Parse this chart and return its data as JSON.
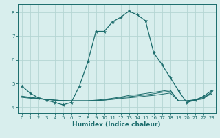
{
  "xlabel": "Humidex (Indice chaleur)",
  "background_color": "#d8eeed",
  "grid_color": "#b5d5d3",
  "line_color": "#1a6b6b",
  "xlim": [
    -0.5,
    23.5
  ],
  "ylim": [
    3.75,
    8.35
  ],
  "yticks": [
    4,
    5,
    6,
    7,
    8
  ],
  "xticks": [
    0,
    1,
    2,
    3,
    4,
    5,
    6,
    7,
    8,
    9,
    10,
    11,
    12,
    13,
    14,
    15,
    16,
    17,
    18,
    19,
    20,
    21,
    22,
    23
  ],
  "main_x": [
    0,
    1,
    2,
    3,
    4,
    5,
    6,
    7,
    8,
    9,
    10,
    11,
    12,
    13,
    14,
    15,
    16,
    17,
    18,
    19,
    20,
    21,
    22,
    23
  ],
  "main_y": [
    4.9,
    4.6,
    4.4,
    4.3,
    4.2,
    4.1,
    4.2,
    4.9,
    5.9,
    7.2,
    7.2,
    7.6,
    7.8,
    8.05,
    7.9,
    7.65,
    6.3,
    5.8,
    5.25,
    4.7,
    4.2,
    4.3,
    4.45,
    4.7
  ],
  "line1_x": [
    0,
    1,
    2,
    3,
    4,
    5,
    6,
    7,
    8,
    9,
    10,
    11,
    12,
    13,
    14,
    15,
    16,
    17,
    18,
    19,
    20,
    21,
    22,
    23
  ],
  "line1_y": [
    4.42,
    4.38,
    4.35,
    4.33,
    4.3,
    4.28,
    4.27,
    4.27,
    4.27,
    4.28,
    4.3,
    4.33,
    4.37,
    4.4,
    4.43,
    4.47,
    4.5,
    4.55,
    4.6,
    4.27,
    4.27,
    4.3,
    4.35,
    4.65
  ],
  "line2_x": [
    0,
    1,
    2,
    3,
    4,
    5,
    6,
    7,
    8,
    9,
    10,
    11,
    12,
    13,
    14,
    15,
    16,
    17,
    18,
    19,
    20,
    21,
    22,
    23
  ],
  "line2_y": [
    4.45,
    4.4,
    4.37,
    4.33,
    4.3,
    4.28,
    4.27,
    4.27,
    4.27,
    4.28,
    4.3,
    4.35,
    4.4,
    4.45,
    4.48,
    4.52,
    4.57,
    4.63,
    4.68,
    4.27,
    4.27,
    4.3,
    4.38,
    4.6
  ],
  "line3_x": [
    0,
    1,
    2,
    3,
    4,
    5,
    6,
    7,
    8,
    9,
    10,
    11,
    12,
    13,
    14,
    15,
    16,
    17,
    18,
    19,
    20,
    21,
    22,
    23
  ],
  "line3_y": [
    4.47,
    4.42,
    4.38,
    4.33,
    4.3,
    4.28,
    4.27,
    4.27,
    4.27,
    4.3,
    4.33,
    4.38,
    4.43,
    4.5,
    4.53,
    4.58,
    4.63,
    4.68,
    4.73,
    4.27,
    4.27,
    4.32,
    4.42,
    4.55
  ]
}
